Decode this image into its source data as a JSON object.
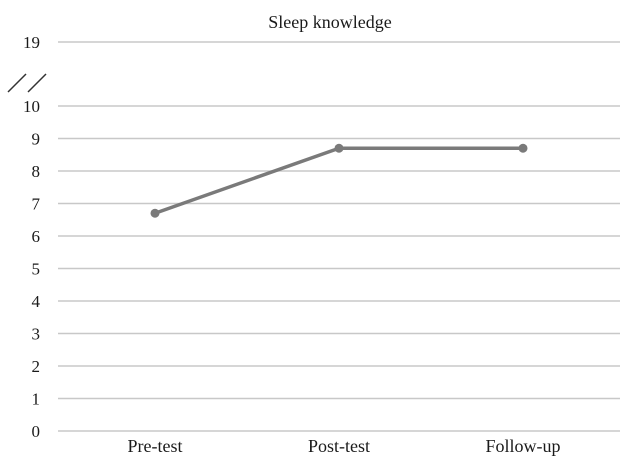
{
  "chart_data": {
    "type": "line",
    "title": "Sleep knowledge",
    "xlabel": "",
    "ylabel": "",
    "categories": [
      "Pre-test",
      "Post-test",
      "Follow-up"
    ],
    "series": [
      {
        "values": [
          6.7,
          8.7,
          8.7
        ]
      }
    ],
    "ylim": [
      0,
      19
    ],
    "y_axis_break": {
      "from": 10,
      "to": 19
    },
    "y_ticks": [
      "0",
      "1",
      "2",
      "3",
      "4",
      "5",
      "6",
      "7",
      "8",
      "9",
      "10",
      "19"
    ],
    "grid": true,
    "legend": "none",
    "colors": {
      "line": "#7a7a7a",
      "grid": "#c8c8c8",
      "text": "#1a1a1a"
    }
  }
}
